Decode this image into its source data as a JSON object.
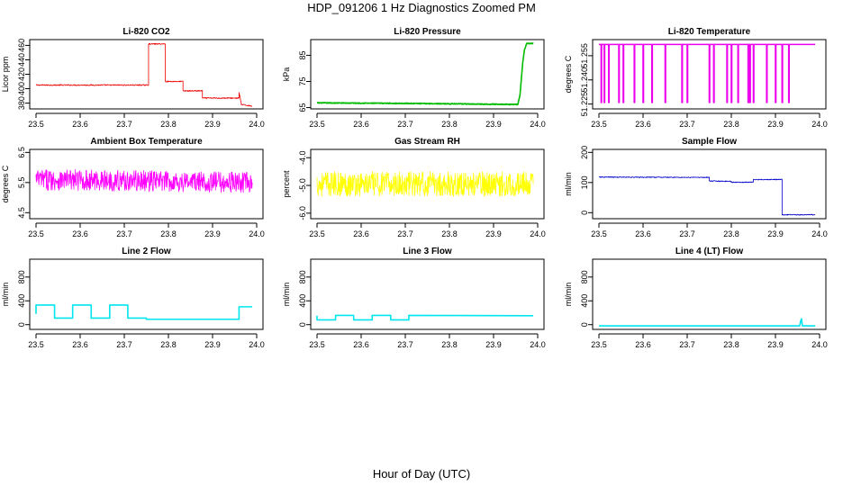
{
  "figure": {
    "title": "HDP_091206  1 Hz Diagnostics Zoomed PM",
    "xlabel": "Hour of Day (UTC)"
  },
  "chart_data": [
    {
      "type": "line",
      "title": "Li-820 CO2",
      "ylabel": "Licor ppm",
      "color": "#ee0000",
      "xlim": [
        23.5,
        24.0
      ],
      "xticks": [
        23.5,
        23.6,
        23.7,
        23.8,
        23.9,
        24.0
      ],
      "xtick_labels": [
        "23.5",
        "23.6",
        "23.7",
        "23.8",
        "23.9",
        "24.0"
      ],
      "ylim": [
        372,
        468
      ],
      "yticks": [
        380,
        400,
        420,
        440,
        460
      ],
      "ytick_labels": [
        "380",
        "400",
        "420",
        "440",
        "460"
      ],
      "noise": 0.8,
      "x": [
        23.5,
        23.755,
        23.755,
        23.793,
        23.793,
        23.833,
        23.833,
        23.877,
        23.877,
        23.96,
        23.96,
        23.965,
        23.965,
        23.99
      ],
      "y": [
        405,
        405,
        462,
        462,
        410,
        410,
        397,
        397,
        387,
        387,
        395,
        380,
        378,
        376
      ]
    },
    {
      "type": "line",
      "title": "Li-820 Pressure",
      "ylabel": "kPa",
      "color": "#00bb00",
      "xlim": [
        23.5,
        24.0
      ],
      "xticks": [
        23.5,
        23.6,
        23.7,
        23.8,
        23.9,
        24.0
      ],
      "xtick_labels": [
        "23.5",
        "23.6",
        "23.7",
        "23.8",
        "23.9",
        "24.0"
      ],
      "ylim": [
        64.5,
        91
      ],
      "yticks": [
        65,
        75,
        85
      ],
      "ytick_labels": [
        "65",
        "75",
        "85"
      ],
      "noise": 0.15,
      "x": [
        23.5,
        23.7,
        23.9,
        23.95,
        23.955,
        23.96,
        23.963,
        23.966,
        23.97,
        23.975,
        23.99
      ],
      "y": [
        66.8,
        66.6,
        66.3,
        66.2,
        66.2,
        70,
        76,
        82,
        87,
        89.5,
        89.5
      ]
    },
    {
      "type": "line",
      "title": "Li-820 Temperature",
      "ylabel": "degrees C",
      "color": "#ee00ee",
      "xlim": [
        23.5,
        24.0
      ],
      "xticks": [
        23.5,
        23.6,
        23.7,
        23.8,
        23.9,
        24.0
      ],
      "xtick_labels": [
        "23.5",
        "23.6",
        "23.7",
        "23.8",
        "23.9",
        "24.0"
      ],
      "ylim": [
        51.222,
        51.265
      ],
      "yticks": [
        51.225,
        51.24,
        51.255
      ],
      "ytick_labels": [
        "51.225",
        "51.240",
        "51.255"
      ],
      "noise": 0,
      "x": [
        23.5,
        23.505,
        23.505,
        23.506,
        23.506,
        23.512,
        23.512,
        23.513,
        23.513,
        23.522,
        23.522,
        23.523,
        23.523,
        23.545,
        23.545,
        23.546,
        23.546,
        23.555,
        23.555,
        23.556,
        23.556,
        23.58,
        23.58,
        23.581,
        23.581,
        23.6,
        23.6,
        23.601,
        23.601,
        23.62,
        23.62,
        23.621,
        23.621,
        23.65,
        23.65,
        23.651,
        23.651,
        23.688,
        23.688,
        23.689,
        23.689,
        23.7,
        23.7,
        23.701,
        23.701,
        23.75,
        23.75,
        23.751,
        23.751,
        23.76,
        23.76,
        23.761,
        23.761,
        23.79,
        23.79,
        23.791,
        23.791,
        23.8,
        23.8,
        23.801,
        23.801,
        23.815,
        23.815,
        23.816,
        23.816,
        23.838,
        23.838,
        23.839,
        23.839,
        23.842,
        23.842,
        23.843,
        23.843,
        23.85,
        23.85,
        23.851,
        23.851,
        23.88,
        23.88,
        23.881,
        23.881,
        23.9,
        23.9,
        23.901,
        23.901,
        23.915,
        23.915,
        23.916,
        23.916,
        23.93,
        23.93,
        23.931,
        23.931,
        23.99
      ],
      "y": [
        51.262,
        51.262,
        51.226,
        51.226,
        51.262,
        51.262,
        51.226,
        51.226,
        51.262,
        51.262,
        51.226,
        51.226,
        51.262,
        51.262,
        51.226,
        51.226,
        51.262,
        51.262,
        51.226,
        51.226,
        51.262,
        51.262,
        51.226,
        51.226,
        51.262,
        51.262,
        51.226,
        51.226,
        51.262,
        51.262,
        51.226,
        51.226,
        51.262,
        51.262,
        51.226,
        51.226,
        51.262,
        51.262,
        51.226,
        51.226,
        51.262,
        51.262,
        51.226,
        51.226,
        51.262,
        51.262,
        51.226,
        51.226,
        51.262,
        51.262,
        51.226,
        51.226,
        51.262,
        51.262,
        51.226,
        51.226,
        51.262,
        51.262,
        51.226,
        51.226,
        51.262,
        51.262,
        51.226,
        51.226,
        51.262,
        51.262,
        51.226,
        51.226,
        51.262,
        51.262,
        51.226,
        51.226,
        51.262,
        51.262,
        51.226,
        51.226,
        51.262,
        51.262,
        51.226,
        51.226,
        51.262,
        51.262,
        51.226,
        51.226,
        51.262,
        51.262,
        51.226,
        51.226,
        51.262,
        51.262,
        51.226,
        51.226,
        51.262,
        51.262
      ]
    },
    {
      "type": "line",
      "title": "Ambient Box Temperature",
      "ylabel": "degrees C",
      "color": "#ff00ff",
      "xlim": [
        23.5,
        24.0
      ],
      "xticks": [
        23.5,
        23.6,
        23.7,
        23.8,
        23.9,
        24.0
      ],
      "xtick_labels": [
        "23.5",
        "23.6",
        "23.7",
        "23.8",
        "23.9",
        "24.0"
      ],
      "ylim": [
        4.3,
        6.6
      ],
      "yticks": [
        4.5,
        5.5,
        6.5
      ],
      "ytick_labels": [
        "4.5",
        "5.5",
        "6.5"
      ],
      "noise": 0.35,
      "x": [
        23.5,
        23.99
      ],
      "y": [
        5.6,
        5.5
      ]
    },
    {
      "type": "line",
      "title": "Gas Stream RH",
      "ylabel": "percent",
      "color": "#ffff00",
      "xlim": [
        23.5,
        24.0
      ],
      "xticks": [
        23.5,
        23.6,
        23.7,
        23.8,
        23.9,
        24.0
      ],
      "xtick_labels": [
        "23.5",
        "23.6",
        "23.7",
        "23.8",
        "23.9",
        "24.0"
      ],
      "ylim": [
        -6.2,
        -3.7
      ],
      "yticks": [
        -6.0,
        -5.0,
        -4.0
      ],
      "ytick_labels": [
        "-6.0",
        "-5.0",
        "-4.0"
      ],
      "noise": 0.45,
      "x": [
        23.5,
        23.99
      ],
      "y": [
        -4.95,
        -4.95
      ]
    },
    {
      "type": "line",
      "title": "Sample Flow",
      "ylabel": "ml/min",
      "color": "#0000cc",
      "xlim": [
        23.5,
        24.0
      ],
      "xticks": [
        23.5,
        23.6,
        23.7,
        23.8,
        23.9,
        24.0
      ],
      "xtick_labels": [
        "23.5",
        "23.6",
        "23.7",
        "23.8",
        "23.9",
        "24.0"
      ],
      "ylim": [
        -20,
        210
      ],
      "yticks": [
        0,
        100,
        200
      ],
      "ytick_labels": [
        "0",
        "100",
        "200"
      ],
      "noise": 1.5,
      "x": [
        23.5,
        23.75,
        23.75,
        23.8,
        23.8,
        23.85,
        23.85,
        23.915,
        23.915,
        23.99
      ],
      "y": [
        118,
        117,
        105,
        104,
        101,
        101,
        110,
        110,
        -7,
        -7
      ]
    },
    {
      "type": "line",
      "title": "Line 2 Flow",
      "ylabel": "ml/min",
      "color": "#00e5ee",
      "xlim": [
        23.5,
        24.0
      ],
      "xticks": [
        23.5,
        23.6,
        23.7,
        23.8,
        23.9,
        24.0
      ],
      "xtick_labels": [
        "23.5",
        "23.6",
        "23.7",
        "23.8",
        "23.9",
        "24.0"
      ],
      "ylim": [
        -80,
        1100
      ],
      "yticks": [
        0,
        400,
        800
      ],
      "ytick_labels": [
        "0",
        "400",
        "800"
      ],
      "noise": 0,
      "x": [
        23.5,
        23.5,
        23.542,
        23.542,
        23.583,
        23.583,
        23.625,
        23.625,
        23.667,
        23.667,
        23.708,
        23.708,
        23.75,
        23.75,
        23.96,
        23.96,
        23.99
      ],
      "y": [
        180,
        330,
        330,
        110,
        110,
        330,
        330,
        110,
        110,
        330,
        330,
        110,
        110,
        90,
        90,
        300,
        300
      ]
    },
    {
      "type": "line",
      "title": "Line 3 Flow",
      "ylabel": "ml/min",
      "color": "#00e5ee",
      "xlim": [
        23.5,
        24.0
      ],
      "xticks": [
        23.5,
        23.6,
        23.7,
        23.8,
        23.9,
        24.0
      ],
      "xtick_labels": [
        "23.5",
        "23.6",
        "23.7",
        "23.8",
        "23.9",
        "24.0"
      ],
      "ylim": [
        -80,
        1100
      ],
      "yticks": [
        0,
        400,
        800
      ],
      "ytick_labels": [
        "0",
        "400",
        "800"
      ],
      "noise": 0,
      "x": [
        23.5,
        23.5,
        23.542,
        23.542,
        23.583,
        23.583,
        23.625,
        23.625,
        23.667,
        23.667,
        23.708,
        23.708,
        23.99
      ],
      "y": [
        150,
        80,
        80,
        155,
        155,
        80,
        80,
        155,
        155,
        80,
        80,
        155,
        150
      ]
    },
    {
      "type": "line",
      "title": "Line 4 (LT) Flow",
      "ylabel": "ml/min",
      "color": "#00e5ee",
      "xlim": [
        23.5,
        24.0
      ],
      "xticks": [
        23.5,
        23.6,
        23.7,
        23.8,
        23.9,
        24.0
      ],
      "xtick_labels": [
        "23.5",
        "23.6",
        "23.7",
        "23.8",
        "23.9",
        "24.0"
      ],
      "ylim": [
        -80,
        1100
      ],
      "yticks": [
        0,
        400,
        800
      ],
      "ytick_labels": [
        "0",
        "400",
        "800"
      ],
      "noise": 0,
      "x": [
        23.5,
        23.955,
        23.957,
        23.959,
        23.961,
        23.99
      ],
      "y": [
        -20,
        -20,
        60,
        100,
        -20,
        -20
      ]
    }
  ]
}
